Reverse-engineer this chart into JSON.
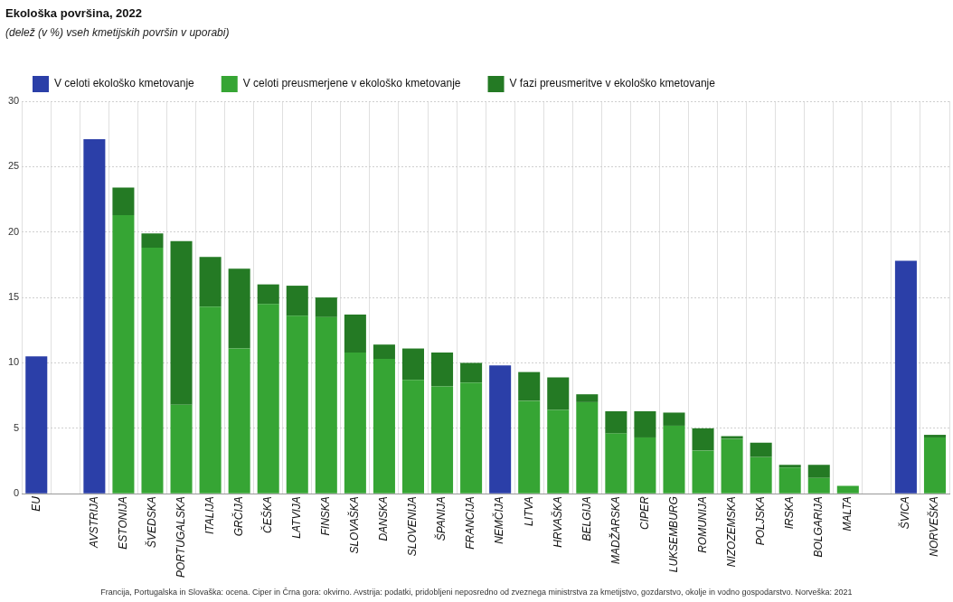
{
  "chart_data": {
    "type": "bar",
    "title": "Ekološka površina, 2022",
    "subtitle": "(delež (v %) vseh kmetijskih površin v uporabi)",
    "categories": [
      "EU",
      null,
      "AVSTRIJA",
      "ESTONIJA",
      "ŠVEDSKA",
      "PORTUGALSKA",
      "ITALIJA",
      "GRČIJA",
      "ČEŠKA",
      "LATVIJA",
      "FINSKA",
      "SLOVAŠKA",
      "DANSKA",
      "SLOVENIJA",
      "ŠPANIJA",
      "FRANCIJA",
      "NEMČIJA",
      "LITVA",
      "HRVAŠKA",
      "BELGIJA",
      "MADŽARSKA",
      "CIPER",
      "LUKSEMBURG",
      "ROMUNIJA",
      "NIZOZEMSKA",
      "POLJSKA",
      "IRSKA",
      "BOLGARIJA",
      "MALTA",
      null,
      "ŠVICA",
      "NORVEŠKA"
    ],
    "stacked": true,
    "series": [
      {
        "name": "V celoti ekološko kmetovanje",
        "color": "#2b3fa8",
        "values": [
          10.5,
          null,
          27.1,
          null,
          null,
          null,
          null,
          null,
          null,
          null,
          null,
          null,
          null,
          null,
          null,
          null,
          9.8,
          null,
          null,
          null,
          null,
          null,
          null,
          null,
          null,
          null,
          null,
          null,
          null,
          null,
          17.8,
          null
        ]
      },
      {
        "name": "V celoti preusmerjene v ekološko kmetovanje",
        "color": "#36a534",
        "values": [
          null,
          null,
          null,
          21.3,
          18.8,
          6.8,
          14.3,
          11.1,
          14.5,
          13.6,
          13.5,
          10.8,
          10.3,
          8.7,
          8.2,
          8.5,
          null,
          7.1,
          6.4,
          7.0,
          4.6,
          4.3,
          5.2,
          3.3,
          4.2,
          2.8,
          2.0,
          1.2,
          0.6,
          null,
          null,
          4.3
        ]
      },
      {
        "name": "V fazi preusmeritve v ekološko kmetovanje",
        "color": "#247a24",
        "values": [
          null,
          null,
          null,
          2.1,
          1.1,
          12.5,
          3.8,
          6.1,
          1.5,
          2.3,
          1.5,
          2.9,
          1.1,
          2.4,
          2.6,
          1.5,
          null,
          2.2,
          2.5,
          0.6,
          1.7,
          2.0,
          1.0,
          1.7,
          0.2,
          1.1,
          0.2,
          1.0,
          null,
          null,
          null,
          0.2
        ]
      }
    ],
    "ylim": [
      0,
      30
    ],
    "yticks": [
      0,
      5,
      10,
      15,
      20,
      25,
      30
    ],
    "grid": true,
    "legend": "top",
    "annotations": [
      "Francija, Portugalska in Slovaška: ocena. Ciper in Črna gora: okvirno. Avstrija: podatki, pridobljeni neposredno od zveznega ministrstva za kmetijstvo, gozdarstvo, okolje in vodno gospodarstvo. Norveška: 2021"
    ]
  }
}
